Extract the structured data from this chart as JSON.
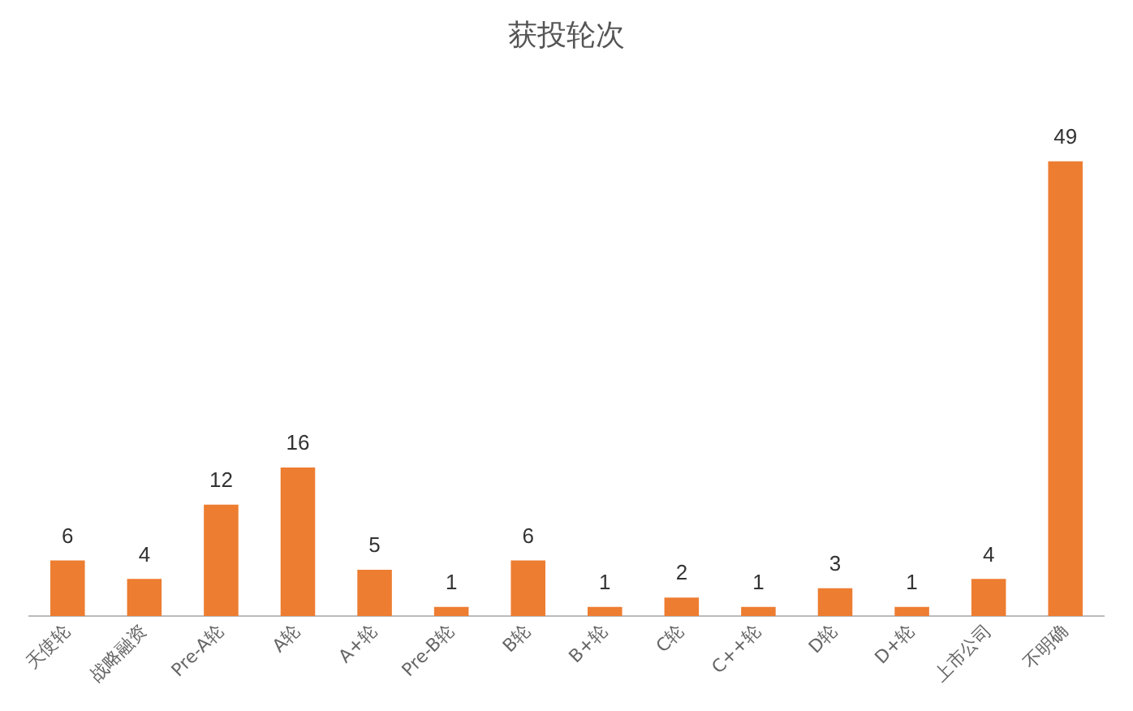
{
  "chart_data": {
    "type": "bar",
    "title": "获投轮次",
    "categories": [
      "天使轮",
      "战略融资",
      "Pre-A轮",
      "A轮",
      "A+轮",
      "Pre-B轮",
      "B轮",
      "B+轮",
      "C轮",
      "C++轮",
      "D轮",
      "D+轮",
      "上市公司",
      "不明确"
    ],
    "values": [
      6,
      4,
      12,
      16,
      5,
      1,
      6,
      1,
      2,
      1,
      3,
      1,
      4,
      49
    ],
    "color": "#ed7d31",
    "data_labels": true,
    "grid": false,
    "legend": false
  }
}
